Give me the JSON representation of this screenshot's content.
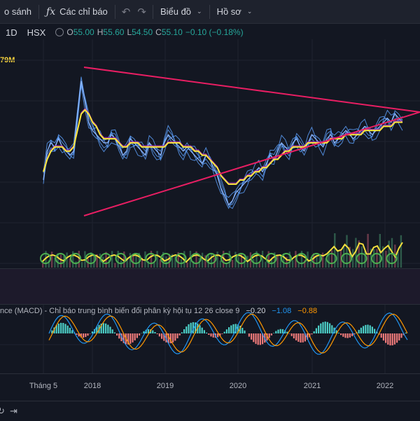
{
  "toolbar": {
    "compare_label": "o sánh",
    "indicators_label": "Các chỉ báo",
    "indicators_icon": "fx-icon",
    "undo_icon": "undo-icon",
    "redo_icon": "redo-icon",
    "chart_type_label": "Biểu đồ",
    "profile_label": "Hồ sơ"
  },
  "legend": {
    "interval": "1D",
    "exchange": "HSX",
    "open_key": "O",
    "open_val": "55.00",
    "high_key": "H",
    "high_val": "55.60",
    "low_key": "L",
    "low_val": "54.50",
    "close_key": "C",
    "close_val": "55.10",
    "change": "−0.10 (−0.18%)",
    "volume_partial": "79M",
    "up_color": "#26a69a"
  },
  "macd": {
    "title": "nce (MACD) - Chỉ báo trung bình biến đổi phân kỳ hội tụ 12 26 close 9",
    "histogram": "−0.20",
    "macd": "−1.08",
    "signal": "−0.88",
    "macd_color": "#2196f3",
    "signal_color": "#ff9800"
  },
  "time_axis": [
    "Tháng 5",
    "2018",
    "2019",
    "2020",
    "2021",
    "2022"
  ],
  "chart_data": {
    "type": "line",
    "x_labels": [
      "Tháng 5",
      "2018",
      "2019",
      "2020",
      "2021",
      "2022"
    ],
    "price_series": [
      {
        "values": [
          46,
          53,
          55,
          54,
          56,
          54,
          53,
          52,
          53,
          62,
          70,
          65,
          60,
          58,
          57,
          56,
          55,
          55,
          57,
          56,
          54,
          52,
          53,
          56,
          55,
          54,
          53,
          52,
          55,
          54,
          53,
          52,
          55,
          57,
          56,
          55,
          54,
          53,
          54,
          53,
          52,
          51,
          50,
          52,
          51,
          49,
          47,
          44,
          42,
          40,
          41,
          43,
          44,
          45,
          46,
          47,
          48,
          49,
          48,
          50,
          52,
          51,
          53,
          55,
          54,
          53,
          55,
          56,
          54,
          53,
          55,
          57,
          56,
          55,
          54,
          56,
          57,
          55,
          56,
          57,
          58,
          57,
          56,
          57,
          58,
          59,
          58,
          57,
          58,
          59,
          60,
          61,
          60,
          62,
          61,
          60
        ]
      },
      {
        "values": [
          48,
          51,
          53,
          54,
          54,
          54,
          53,
          53,
          54,
          58,
          62,
          63,
          62,
          60,
          59,
          57,
          56,
          56,
          56,
          56,
          55,
          54,
          54,
          55,
          55,
          55,
          54,
          54,
          54,
          54,
          54,
          54,
          54,
          55,
          55,
          55,
          55,
          54,
          54,
          54,
          53,
          53,
          52,
          52,
          51,
          50,
          49,
          47,
          46,
          45,
          45,
          45,
          46,
          46,
          47,
          47,
          48,
          48,
          49,
          49,
          50,
          51,
          51,
          52,
          53,
          53,
          54,
          54,
          54,
          54,
          55,
          55,
          55,
          55,
          55,
          55,
          56,
          56,
          56,
          56,
          57,
          57,
          57,
          57,
          57,
          58,
          58,
          58,
          58,
          58,
          59,
          59,
          59,
          60,
          60,
          60
        ]
      }
    ],
    "trendlines": [
      {
        "name": "upper",
        "color": "#e91e63"
      },
      {
        "name": "lower",
        "color": "#e91e63"
      }
    ],
    "colors": {
      "ma_fast": "#5b9cf6",
      "ma_mid": "#9c27b0",
      "ma_slow": "#ffeb3b",
      "rsi": "#7e57c2"
    }
  }
}
